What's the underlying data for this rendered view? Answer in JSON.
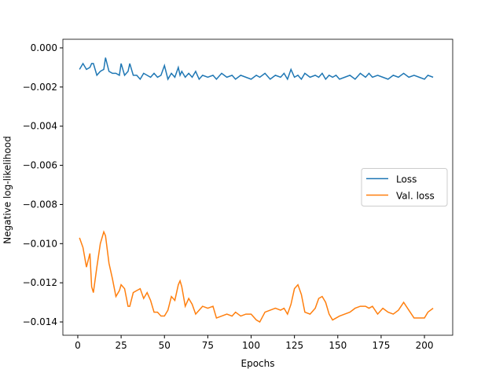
{
  "chart_data": {
    "type": "line",
    "xlabel": "Epochs",
    "ylabel": "Negative log-likelihood",
    "x": [
      1,
      3,
      5,
      7,
      8,
      9,
      11,
      13,
      15,
      16,
      18,
      20,
      22,
      24,
      25,
      27,
      29,
      30,
      32,
      34,
      36,
      38,
      40,
      42,
      44,
      46,
      48,
      50,
      52,
      54,
      56,
      58,
      59,
      60,
      62,
      64,
      66,
      68,
      70,
      72,
      75,
      78,
      80,
      83,
      86,
      89,
      91,
      94,
      97,
      100,
      103,
      105,
      108,
      111,
      114,
      117,
      119,
      121,
      123,
      125,
      127,
      129,
      131,
      134,
      137,
      139,
      141,
      143,
      145,
      147,
      149,
      151,
      154,
      157,
      160,
      163,
      166,
      168,
      170,
      173,
      176,
      179,
      182,
      185,
      188,
      191,
      194,
      197,
      200,
      202,
      205
    ],
    "series": [
      {
        "name": "Loss",
        "color": "#1f77b4",
        "values": [
          -0.0011,
          -0.0008,
          -0.0011,
          -0.001,
          -0.0008,
          -0.0008,
          -0.0014,
          -0.0012,
          -0.0011,
          -0.0005,
          -0.0012,
          -0.0013,
          -0.0013,
          -0.0014,
          -0.0008,
          -0.0014,
          -0.0012,
          -0.0008,
          -0.0014,
          -0.0014,
          -0.0016,
          -0.0013,
          -0.0014,
          -0.0015,
          -0.0013,
          -0.0015,
          -0.0014,
          -0.0009,
          -0.0016,
          -0.0013,
          -0.0015,
          -0.001,
          -0.0014,
          -0.0012,
          -0.0015,
          -0.0013,
          -0.0015,
          -0.0012,
          -0.0016,
          -0.0014,
          -0.0015,
          -0.0014,
          -0.0016,
          -0.0013,
          -0.0015,
          -0.0014,
          -0.0016,
          -0.0014,
          -0.0015,
          -0.0016,
          -0.0014,
          -0.0015,
          -0.0013,
          -0.0016,
          -0.0014,
          -0.0015,
          -0.0013,
          -0.0016,
          -0.0011,
          -0.0015,
          -0.0014,
          -0.0016,
          -0.0013,
          -0.0015,
          -0.0014,
          -0.0015,
          -0.0013,
          -0.0016,
          -0.0014,
          -0.0015,
          -0.0014,
          -0.0016,
          -0.0015,
          -0.0014,
          -0.0016,
          -0.0013,
          -0.0015,
          -0.0013,
          -0.0015,
          -0.0014,
          -0.0015,
          -0.0016,
          -0.0014,
          -0.0015,
          -0.0013,
          -0.0015,
          -0.0014,
          -0.0015,
          -0.0016,
          -0.0014,
          -0.0015
        ]
      },
      {
        "name": "Val. loss",
        "color": "#ff7f0e",
        "values": [
          -0.0097,
          -0.0102,
          -0.0112,
          -0.0105,
          -0.0122,
          -0.0125,
          -0.0112,
          -0.01,
          -0.0094,
          -0.0096,
          -0.011,
          -0.0118,
          -0.0127,
          -0.0124,
          -0.0121,
          -0.0123,
          -0.0132,
          -0.0132,
          -0.0125,
          -0.0124,
          -0.0123,
          -0.0128,
          -0.0125,
          -0.0129,
          -0.0135,
          -0.0135,
          -0.0137,
          -0.0137,
          -0.0134,
          -0.0127,
          -0.0129,
          -0.0121,
          -0.0119,
          -0.0122,
          -0.0132,
          -0.0128,
          -0.0131,
          -0.0136,
          -0.0134,
          -0.0132,
          -0.0133,
          -0.0132,
          -0.0138,
          -0.0137,
          -0.0136,
          -0.0137,
          -0.0135,
          -0.0137,
          -0.0136,
          -0.0136,
          -0.0139,
          -0.014,
          -0.0135,
          -0.0134,
          -0.0133,
          -0.0134,
          -0.0133,
          -0.0136,
          -0.0131,
          -0.0123,
          -0.0121,
          -0.0126,
          -0.0135,
          -0.0136,
          -0.0133,
          -0.0128,
          -0.0127,
          -0.013,
          -0.0136,
          -0.0139,
          -0.0138,
          -0.0137,
          -0.0136,
          -0.0135,
          -0.0133,
          -0.0132,
          -0.0132,
          -0.0133,
          -0.0132,
          -0.0136,
          -0.0133,
          -0.0135,
          -0.0136,
          -0.0134,
          -0.013,
          -0.0134,
          -0.0138,
          -0.0138,
          -0.0138,
          -0.0135,
          -0.0133
        ]
      }
    ],
    "xlim": [
      -8.6,
      216.3
    ],
    "ylim": [
      -0.01468,
      0.00044
    ],
    "xticks": [
      0,
      25,
      50,
      75,
      100,
      125,
      150,
      175,
      200
    ],
    "yticks": [
      {
        "value": 0,
        "label": "0.000"
      },
      {
        "value": -0.002,
        "label": "−0.002"
      },
      {
        "value": -0.004,
        "label": "−0.004"
      },
      {
        "value": -0.006,
        "label": "−0.006"
      },
      {
        "value": -0.008,
        "label": "−0.008"
      },
      {
        "value": -0.01,
        "label": "−0.010"
      },
      {
        "value": -0.012,
        "label": "−0.012"
      },
      {
        "value": -0.014,
        "label": "−0.014"
      }
    ],
    "legend": "center right"
  }
}
